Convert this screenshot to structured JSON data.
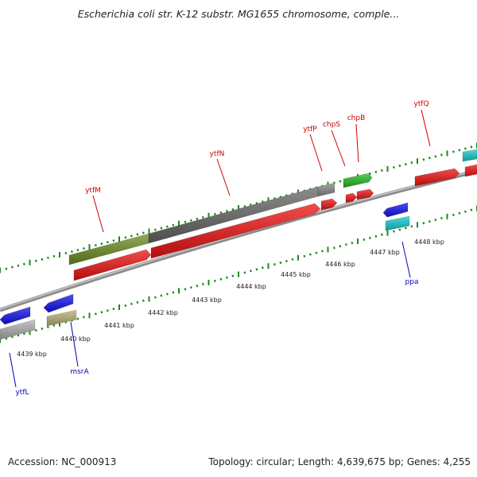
{
  "title": "Escherichia coli str. K-12 substr. MG1655 chromosome, comple...",
  "accession": "Accession: NC_000913",
  "summary": "Topology: circular; Length: 4,639,675 bp; Genes: 4,255",
  "ruler": {
    "unit": "kbp",
    "labels": [
      "4439 kbp",
      "4440 kbp",
      "4441 kbp",
      "4442 kbp",
      "4443 kbp",
      "4444 kbp",
      "4445 kbp",
      "4446 kbp",
      "4447 kbp",
      "4448 kbp"
    ]
  },
  "genes_top": [
    "ytfM",
    "ytfN",
    "ytfP",
    "chpS",
    "chpB",
    "ytfQ"
  ],
  "genes_bottom": [
    "ytfL",
    "msrA",
    "ppa"
  ],
  "colors": {
    "backbone": "#8c8c8c",
    "tick": "#1a8a1a",
    "forward_cds": "#ee1111",
    "reverse_cds": "#1111ee",
    "top_label": "#cc0000",
    "bottom_label": "#0000bb",
    "gene_olive": "#6b8e23",
    "gene_grey": "#666666",
    "gene_green": "#22bb22",
    "gene_cyan": "#11cccc",
    "gene_khaki": "#b8b070",
    "gene_silver": "#b0b0b0"
  }
}
